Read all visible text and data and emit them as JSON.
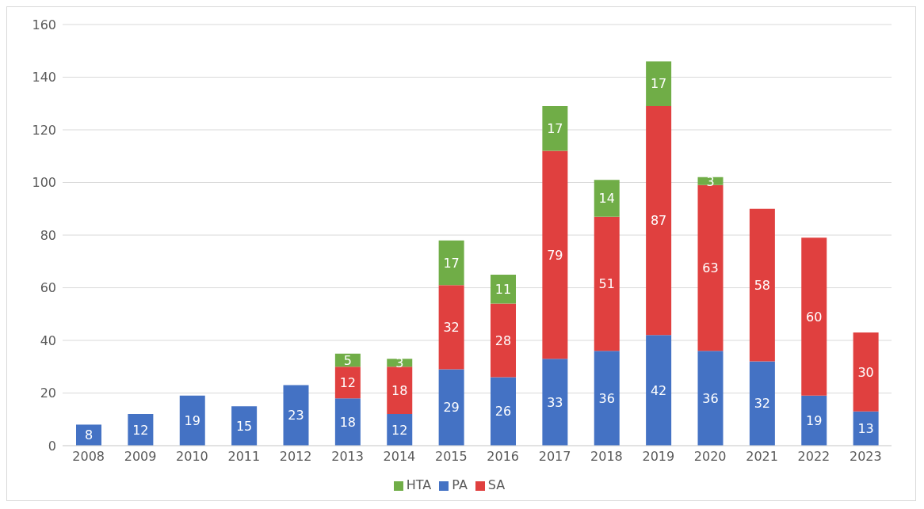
{
  "chart_data": {
    "type": "bar",
    "stacked": true,
    "categories": [
      "2008",
      "2009",
      "2010",
      "2011",
      "2012",
      "2013",
      "2014",
      "2015",
      "2016",
      "2017",
      "2018",
      "2019",
      "2020",
      "2021",
      "2022",
      "2023"
    ],
    "series": [
      {
        "name": "PA",
        "color": "#4472c4",
        "values": [
          8,
          12,
          19,
          15,
          23,
          18,
          12,
          29,
          26,
          33,
          36,
          42,
          36,
          32,
          19,
          13
        ]
      },
      {
        "name": "SA",
        "color": "#e0403f",
        "values": [
          null,
          null,
          null,
          null,
          null,
          12,
          18,
          32,
          28,
          79,
          51,
          87,
          63,
          58,
          60,
          30
        ]
      },
      {
        "name": "HTA",
        "color": "#70ad47",
        "values": [
          null,
          null,
          null,
          null,
          null,
          5,
          3,
          17,
          11,
          17,
          14,
          17,
          3,
          null,
          null,
          null
        ]
      }
    ],
    "ylim": [
      0,
      160
    ],
    "yticks": [
      0,
      20,
      40,
      60,
      80,
      100,
      120,
      140,
      160
    ],
    "grid": "y",
    "legend": "bottom",
    "data_labels": true
  }
}
